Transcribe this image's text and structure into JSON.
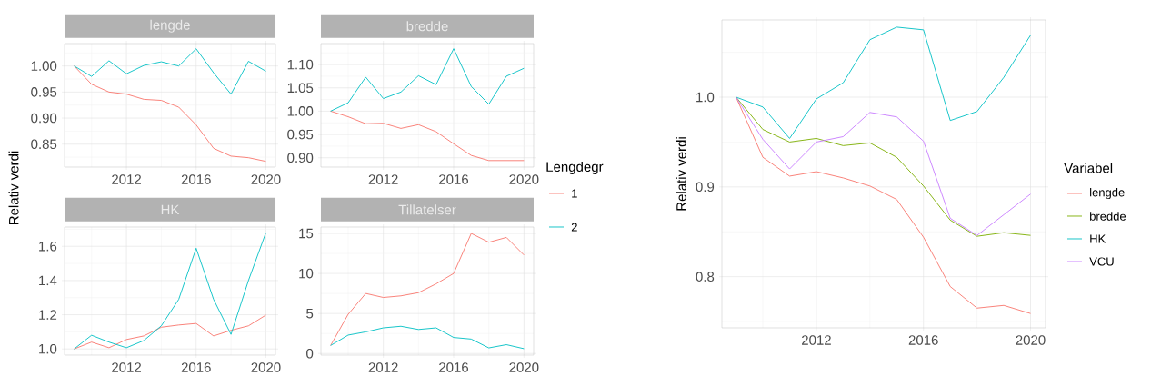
{
  "chart_data": [
    {
      "type": "line",
      "title": "lengde",
      "ylabel": "Relativ verdi",
      "legend_title": "Lengdegr",
      "legend": "right",
      "grid": true,
      "x": [
        2009,
        2010,
        2011,
        2012,
        2013,
        2014,
        2015,
        2016,
        2017,
        2018,
        2019,
        2020
      ],
      "xlim": [
        2008.45,
        2020.55
      ],
      "xticks": [
        2012,
        2016,
        2020
      ],
      "ylim": [
        0.806,
        1.043
      ],
      "yticks": [
        {
          "value": 0.85,
          "label": "0.85"
        },
        {
          "value": 0.9,
          "label": "0.90"
        },
        {
          "value": 0.95,
          "label": "0.95"
        },
        {
          "value": 1.0,
          "label": "1.00"
        }
      ],
      "series": [
        {
          "name": "1",
          "color": "#f8766d",
          "values": [
            1.0,
            0.965,
            0.95,
            0.946,
            0.936,
            0.934,
            0.921,
            0.887,
            0.842,
            0.827,
            0.824,
            0.817
          ]
        },
        {
          "name": "2",
          "color": "#00bfc4",
          "values": [
            1.0,
            0.98,
            1.01,
            0.985,
            1.001,
            1.008,
            1.0,
            1.033,
            0.987,
            0.946,
            1.009,
            0.99
          ]
        }
      ]
    },
    {
      "type": "line",
      "title": "bredde",
      "grid": true,
      "x": [
        2009,
        2010,
        2011,
        2012,
        2013,
        2014,
        2015,
        2016,
        2017,
        2018,
        2019,
        2020
      ],
      "xlim": [
        2008.45,
        2020.55
      ],
      "xticks": [
        2012,
        2016,
        2020
      ],
      "ylim": [
        0.88,
        1.145
      ],
      "yticks": [
        {
          "value": 0.9,
          "label": "0.90"
        },
        {
          "value": 0.95,
          "label": "0.95"
        },
        {
          "value": 1.0,
          "label": "1.00"
        },
        {
          "value": 1.05,
          "label": "1.05"
        },
        {
          "value": 1.1,
          "label": "1.10"
        }
      ],
      "series": [
        {
          "color": "#f8766d",
          "values": [
            1.0,
            0.988,
            0.973,
            0.974,
            0.963,
            0.971,
            0.956,
            0.93,
            0.905,
            0.894,
            0.894,
            0.894
          ]
        },
        {
          "color": "#00bfc4",
          "values": [
            1.0,
            1.018,
            1.073,
            1.027,
            1.041,
            1.076,
            1.057,
            1.134,
            1.053,
            1.015,
            1.075,
            1.092
          ]
        }
      ]
    },
    {
      "type": "line",
      "title": "HK",
      "grid": true,
      "x": [
        2009,
        2010,
        2011,
        2012,
        2013,
        2014,
        2015,
        2016,
        2017,
        2018,
        2019,
        2020
      ],
      "xlim": [
        2008.45,
        2020.55
      ],
      "xticks": [
        2012,
        2016,
        2020
      ],
      "ylim": [
        0.964,
        1.713
      ],
      "yticks": [
        {
          "value": 1.0,
          "label": "1.0"
        },
        1.2,
        1.4,
        1.6
      ],
      "series": [
        {
          "color": "#f8766d",
          "values": [
            1.0,
            1.04,
            1.007,
            1.055,
            1.076,
            1.127,
            1.14,
            1.149,
            1.076,
            1.109,
            1.135,
            1.198
          ]
        },
        {
          "color": "#00bfc4",
          "values": [
            1.0,
            1.08,
            1.04,
            1.007,
            1.049,
            1.135,
            1.29,
            1.589,
            1.29,
            1.085,
            1.4,
            1.68
          ]
        }
      ]
    },
    {
      "type": "line",
      "title": "Tillatelser",
      "grid": true,
      "x": [
        2009,
        2010,
        2011,
        2012,
        2013,
        2014,
        2015,
        2016,
        2017,
        2018,
        2019,
        2020
      ],
      "xlim": [
        2008.45,
        2020.55
      ],
      "xticks": [
        2012,
        2016,
        2020
      ],
      "ylim": [
        -0.2,
        15.8
      ],
      "yticks": [
        0,
        5,
        10,
        15
      ],
      "series": [
        {
          "color": "#f8766d",
          "values": [
            1.0,
            4.9,
            7.5,
            7.0,
            7.2,
            7.6,
            8.7,
            10.0,
            15.0,
            13.9,
            14.5,
            12.3
          ]
        },
        {
          "color": "#00bfc4",
          "values": [
            1.0,
            2.3,
            2.7,
            3.2,
            3.4,
            3.0,
            3.2,
            2.0,
            1.8,
            0.7,
            1.1,
            0.6
          ]
        }
      ]
    },
    {
      "type": "line",
      "ylabel": "Relativ verdi",
      "legend_title": "Variabel",
      "legend": "right",
      "grid": true,
      "x": [
        2009,
        2010,
        2011,
        2012,
        2013,
        2014,
        2015,
        2016,
        2017,
        2018,
        2019,
        2020
      ],
      "xlim": [
        2008.47,
        2020.56
      ],
      "xticks": [
        2012,
        2016,
        2020
      ],
      "ylim": [
        0.743,
        1.086
      ],
      "yticks": [
        0.8,
        0.9,
        {
          "value": 1.0,
          "label": "1.0"
        }
      ],
      "series": [
        {
          "name": "lengde",
          "color": "#f8766d",
          "values": [
            1.0,
            0.933,
            0.912,
            0.917,
            0.91,
            0.901,
            0.886,
            0.844,
            0.789,
            0.765,
            0.768,
            0.759
          ]
        },
        {
          "name": "bredde",
          "color": "#7cae00",
          "values": [
            1.0,
            0.964,
            0.95,
            0.954,
            0.946,
            0.949,
            0.933,
            0.901,
            0.863,
            0.845,
            0.849,
            0.846
          ]
        },
        {
          "name": "HK",
          "color": "#00bfc4",
          "values": [
            1.0,
            0.989,
            0.954,
            0.998,
            1.016,
            1.064,
            1.078,
            1.075,
            0.974,
            0.984,
            1.022,
            1.069
          ]
        },
        {
          "name": "VCU",
          "color": "#c77cff",
          "values": [
            1.0,
            0.953,
            0.92,
            0.95,
            0.956,
            0.983,
            0.978,
            0.951,
            0.865,
            0.846,
            0.869,
            0.892
          ]
        }
      ]
    }
  ]
}
